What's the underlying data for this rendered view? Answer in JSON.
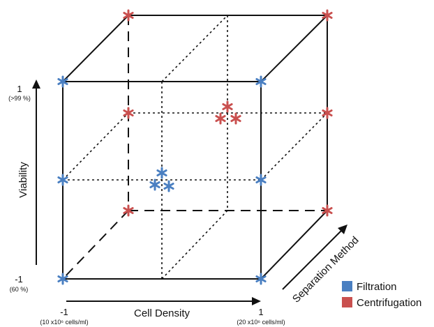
{
  "x_axis": {
    "title": "Cell Density",
    "min_label": "-1",
    "min_sub": "(10 x10⁶ cells/ml)",
    "max_label": "1",
    "max_sub": "(20 x10⁶ cells/ml)"
  },
  "y_axis": {
    "title": "Viability",
    "min_label": "-1",
    "min_sub": "(60 %)",
    "max_label": "1",
    "max_sub": "(>99 %)"
  },
  "z_axis": {
    "title": "Separation Method"
  },
  "legend": [
    {
      "label": "Filtration",
      "color": "#4a7fc1"
    },
    {
      "label": "Centrifugation",
      "color": "#c9504f"
    }
  ]
}
